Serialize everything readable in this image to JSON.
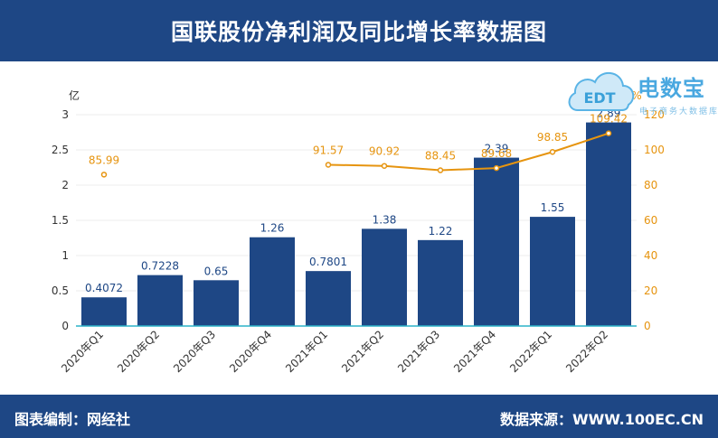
{
  "header": {
    "title": "国联股份净利润及同比增长率数据图"
  },
  "footer": {
    "editor": "图表编制：网经社",
    "source": "数据来源：WWW.100EC.CN"
  },
  "logo": {
    "name": "电数宝",
    "subtitle": "电子商务大数据库",
    "icon": "cloud-edt-icon",
    "icon_text": "EDT"
  },
  "colors": {
    "header_bg": "#1e4785",
    "bar": "#1e4785",
    "line": "#e6940f",
    "axis_line": "#2bb3c9"
  },
  "chart_data": {
    "type": "bar+line",
    "categories": [
      "2020年Q1",
      "2020年Q2",
      "2020年Q3",
      "2020年Q4",
      "2021年Q1",
      "2021年Q2",
      "2021年Q3",
      "2021年Q4",
      "2022年Q1",
      "2022年Q2"
    ],
    "series": [
      {
        "type": "bar",
        "axis": "left",
        "values": [
          0.4072,
          0.7228,
          0.65,
          1.26,
          0.7801,
          1.38,
          1.22,
          2.39,
          1.55,
          2.89
        ],
        "labels": [
          "0.4072",
          "0.7228",
          "0.65",
          "1.26",
          "0.7801",
          "1.38",
          "1.22",
          "2.39",
          "1.55",
          "2.89"
        ]
      },
      {
        "type": "line",
        "axis": "right",
        "values": [
          85.99,
          null,
          null,
          null,
          91.57,
          90.92,
          88.45,
          89.68,
          98.85,
          109.42
        ],
        "labels": [
          "85.99",
          "",
          "",
          "",
          "91.57",
          "90.92",
          "88.45",
          "89.68",
          "98.85",
          "109.42"
        ]
      }
    ],
    "left_axis": {
      "unit": "亿",
      "ylim": [
        0,
        3
      ],
      "ticks": [
        "0",
        "0.5",
        "1",
        "1.5",
        "2",
        "2.5",
        "3"
      ]
    },
    "right_axis": {
      "unit": "%",
      "ylim": [
        0,
        120
      ],
      "ticks": [
        "0",
        "20",
        "40",
        "60",
        "80",
        "100",
        "120"
      ]
    },
    "grid": true
  }
}
